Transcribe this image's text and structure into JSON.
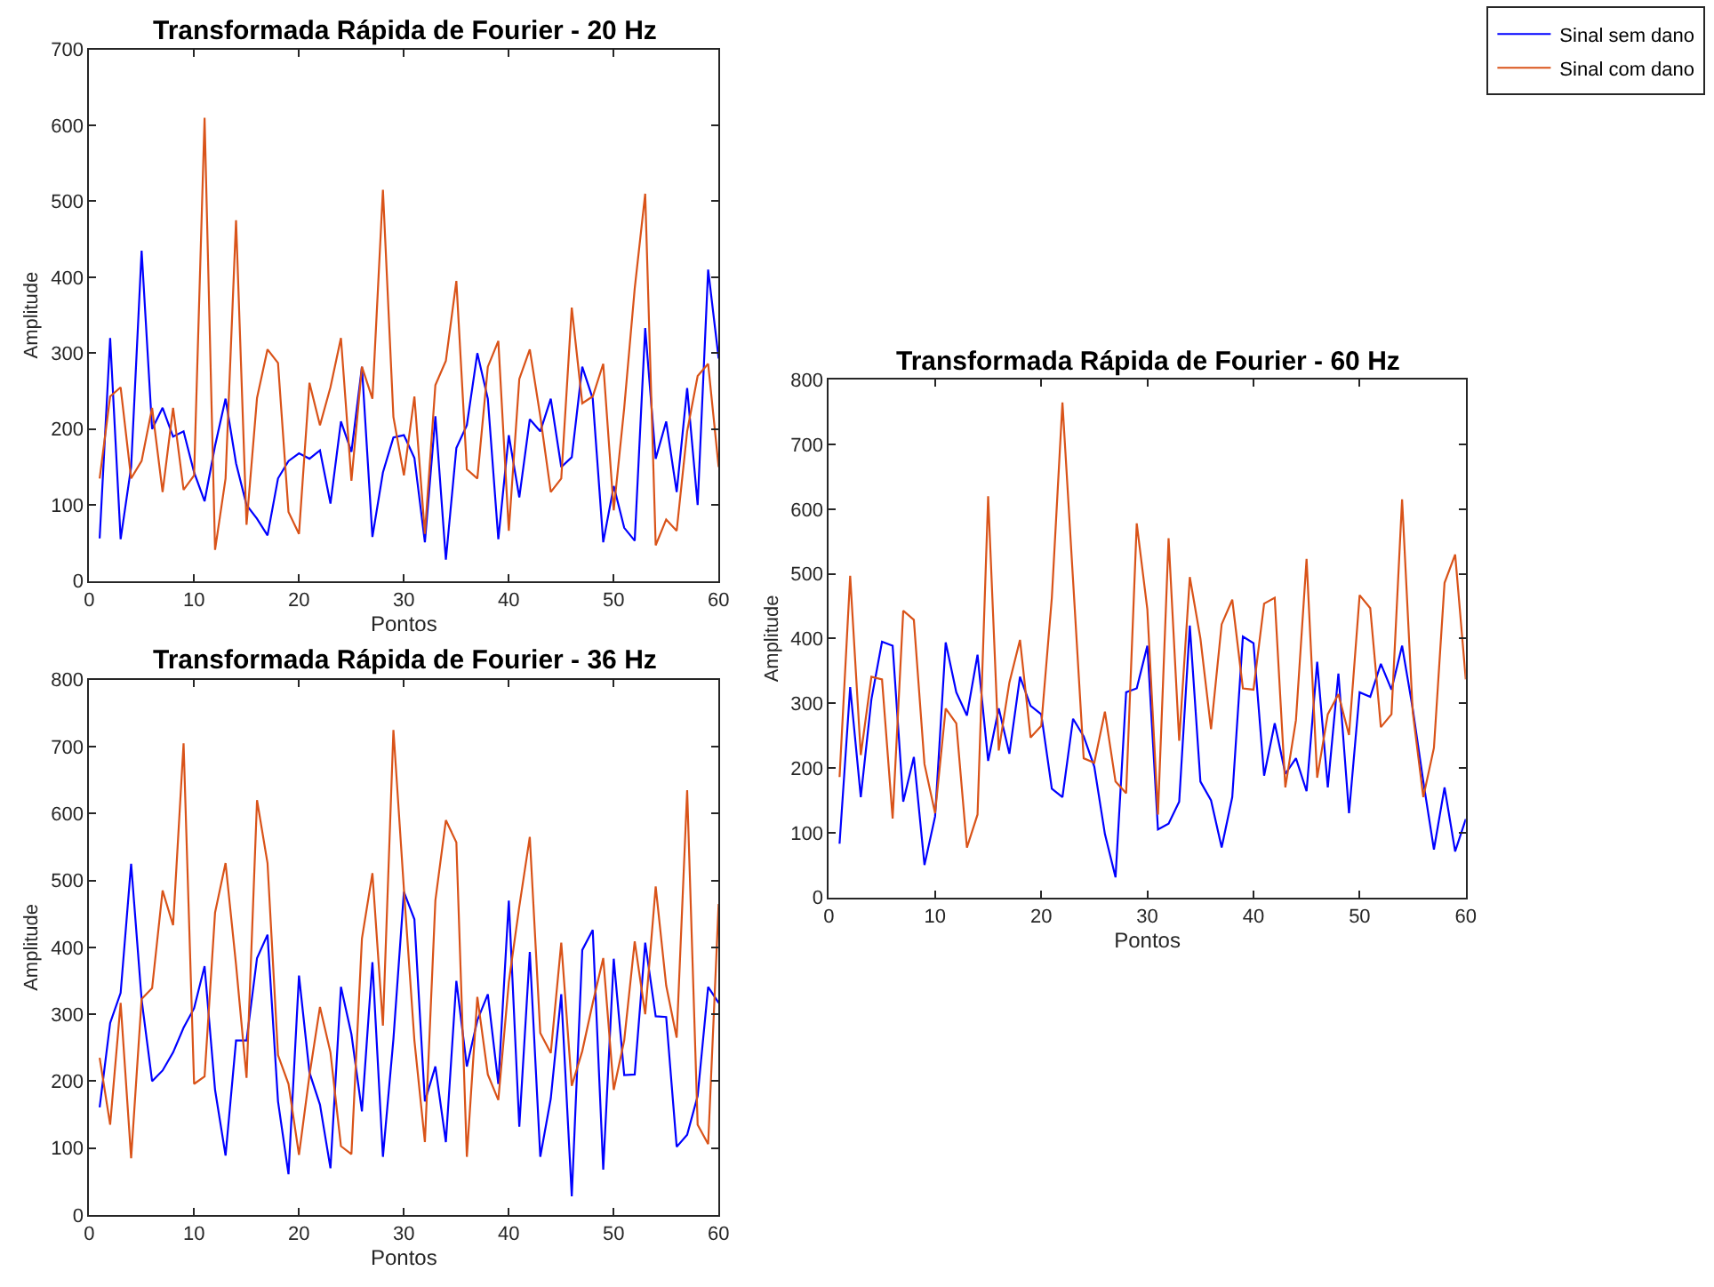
{
  "chart_data": [
    {
      "type": "line",
      "title": "Transformada Rápida de Fourier - 20 Hz",
      "xlabel": "Pontos",
      "ylabel": "Amplitude",
      "xlim": [
        0,
        60
      ],
      "xticks": [
        0,
        10,
        20,
        30,
        40,
        50,
        60
      ],
      "ylim": [
        0,
        700
      ],
      "yticks": [
        0,
        100,
        200,
        300,
        400,
        500,
        600,
        700
      ],
      "legend": "top right",
      "marker": "none",
      "x": [
        1,
        2,
        3,
        4,
        5,
        6,
        7,
        8,
        9,
        10,
        11,
        12,
        13,
        14,
        15,
        16,
        17,
        18,
        19,
        20,
        21,
        22,
        23,
        24,
        25,
        26,
        27,
        28,
        29,
        30,
        31,
        32,
        33,
        34,
        35,
        36,
        37,
        38,
        39,
        40,
        41,
        42,
        43,
        44,
        45,
        46,
        47,
        48,
        49,
        50,
        51,
        52,
        53,
        54,
        55,
        56,
        57,
        58,
        59,
        60
      ],
      "series": [
        {
          "name": "Sinal sem dano",
          "color": "#0000ff",
          "values": [
            56,
            320,
            55,
            150,
            435,
            200,
            228,
            190,
            197,
            143,
            105,
            178,
            240,
            155,
            100,
            82,
            60,
            135,
            158,
            168,
            161,
            172,
            102,
            210,
            170,
            282,
            58,
            143,
            189,
            192,
            162,
            51,
            217,
            28,
            175,
            205,
            300,
            240,
            55,
            192,
            110,
            213,
            197,
            240,
            150,
            163,
            282,
            240,
            51,
            125,
            70,
            53,
            333,
            161,
            210,
            117,
            254,
            100,
            410,
            293
          ]
        },
        {
          "name": "Sinal com dano",
          "color": "#d95319",
          "values": [
            135,
            243,
            255,
            135,
            158,
            228,
            117,
            228,
            120,
            139,
            610,
            41,
            135,
            475,
            74,
            241,
            305,
            287,
            91,
            62,
            261,
            205,
            255,
            320,
            132,
            282,
            240,
            515,
            216,
            139,
            243,
            62,
            258,
            290,
            395,
            147,
            135,
            282,
            316,
            66,
            266,
            305,
            217,
            117,
            135,
            360,
            234,
            243,
            286,
            93,
            228,
            385,
            510,
            47,
            81,
            66,
            197,
            270,
            286,
            150
          ]
        }
      ]
    },
    {
      "type": "line",
      "title": "Transformada Rápida de Fourier - 36 Hz",
      "xlabel": "Pontos",
      "ylabel": "Amplitude",
      "xlim": [
        0,
        60
      ],
      "xticks": [
        0,
        10,
        20,
        30,
        40,
        50,
        60
      ],
      "ylim": [
        0,
        800
      ],
      "yticks": [
        0,
        100,
        200,
        300,
        400,
        500,
        600,
        700,
        800
      ],
      "marker": "none",
      "x": [
        1,
        2,
        3,
        4,
        5,
        6,
        7,
        8,
        9,
        10,
        11,
        12,
        13,
        14,
        15,
        16,
        17,
        18,
        19,
        20,
        21,
        22,
        23,
        24,
        25,
        26,
        27,
        28,
        29,
        30,
        31,
        32,
        33,
        34,
        35,
        36,
        37,
        38,
        39,
        40,
        41,
        42,
        43,
        44,
        45,
        46,
        47,
        48,
        49,
        50,
        51,
        52,
        53,
        54,
        55,
        56,
        57,
        58,
        59,
        60
      ],
      "series": [
        {
          "color": "#0000ff",
          "values": [
            161,
            287,
            332,
            525,
            322,
            200,
            216,
            243,
            280,
            309,
            372,
            187,
            89,
            261,
            261,
            384,
            419,
            170,
            61,
            358,
            213,
            165,
            70,
            341,
            270,
            155,
            378,
            87,
            263,
            483,
            442,
            170,
            222,
            109,
            350,
            222,
            291,
            330,
            196,
            470,
            132,
            393,
            87,
            174,
            330,
            28,
            396,
            426,
            68,
            383,
            209,
            210,
            407,
            297,
            296,
            102,
            120,
            178,
            341,
            317
          ]
        },
        {
          "color": "#d95319",
          "values": [
            235,
            135,
            317,
            85,
            323,
            339,
            485,
            433,
            705,
            196,
            207,
            452,
            526,
            374,
            205,
            620,
            526,
            239,
            196,
            90,
            209,
            311,
            243,
            103,
            91,
            413,
            511,
            283,
            725,
            487,
            261,
            109,
            470,
            590,
            557,
            87,
            326,
            210,
            172,
            348,
            461,
            565,
            272,
            242,
            407,
            193,
            245,
            317,
            384,
            187,
            261,
            409,
            300,
            491,
            343,
            265,
            635,
            135,
            106,
            465
          ]
        }
      ]
    },
    {
      "type": "line",
      "title": "Transformada Rápida de Fourier - 60 Hz",
      "xlabel": "Pontos",
      "ylabel": "Amplitude",
      "xlim": [
        0,
        60
      ],
      "xticks": [
        0,
        10,
        20,
        30,
        40,
        50,
        60
      ],
      "ylim": [
        0,
        800
      ],
      "yticks": [
        0,
        100,
        200,
        300,
        400,
        500,
        600,
        700,
        800
      ],
      "marker": "none",
      "x": [
        1,
        2,
        3,
        4,
        5,
        6,
        7,
        8,
        9,
        10,
        11,
        12,
        13,
        14,
        15,
        16,
        17,
        18,
        19,
        20,
        21,
        22,
        23,
        24,
        25,
        26,
        27,
        28,
        29,
        30,
        31,
        32,
        33,
        34,
        35,
        36,
        37,
        38,
        39,
        40,
        41,
        42,
        43,
        44,
        45,
        46,
        47,
        48,
        49,
        50,
        51,
        52,
        53,
        54,
        55,
        56,
        57,
        58,
        59,
        60
      ],
      "series": [
        {
          "color": "#0000ff",
          "values": [
            83,
            325,
            155,
            306,
            395,
            389,
            148,
            217,
            50,
            125,
            394,
            317,
            281,
            375,
            211,
            292,
            222,
            341,
            296,
            283,
            168,
            155,
            276,
            249,
            202,
            98,
            31,
            317,
            323,
            389,
            105,
            114,
            148,
            420,
            179,
            150,
            77,
            155,
            403,
            393,
            188,
            269,
            191,
            215,
            164,
            364,
            170,
            346,
            130,
            317,
            310,
            361,
            321,
            389,
            292,
            179,
            74,
            170,
            71,
            121
          ]
        },
        {
          "color": "#d95319",
          "values": [
            186,
            497,
            220,
            341,
            337,
            122,
            443,
            429,
            206,
            130,
            292,
            269,
            77,
            128,
            620,
            227,
            332,
            398,
            247,
            265,
            463,
            765,
            490,
            215,
            208,
            287,
            179,
            161,
            578,
            445,
            128,
            555,
            242,
            495,
            400,
            260,
            422,
            460,
            323,
            321,
            454,
            463,
            170,
            274,
            523,
            185,
            283,
            314,
            251,
            467,
            447,
            263,
            283,
            615,
            287,
            155,
            231,
            486,
            530,
            337
          ]
        }
      ]
    }
  ]
}
